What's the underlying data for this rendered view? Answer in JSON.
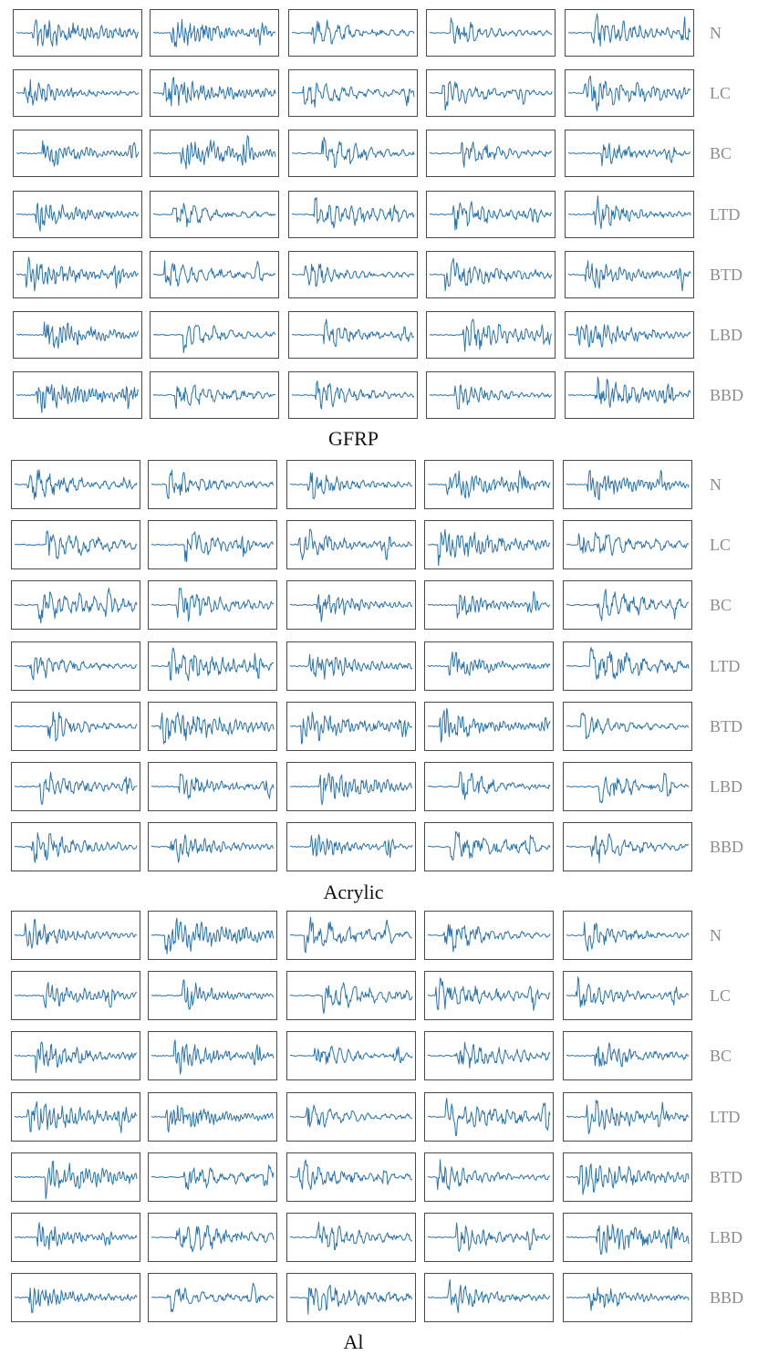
{
  "figure": {
    "line_color": "#2a73ae",
    "frame_color": "#4a4a4a",
    "label_color": "#8c8c8c",
    "columns_per_row": 5
  },
  "chart_data": [
    {
      "type": "line",
      "title": "GFRP",
      "row_labels": [
        "N",
        "LC",
        "BC",
        "LTD",
        "BTD",
        "LBD",
        "BBD"
      ],
      "columns": 5,
      "axes_visible": false,
      "grid": false
    },
    {
      "type": "line",
      "title": "Acrylic",
      "row_labels": [
        "N",
        "LC",
        "BC",
        "LTD",
        "BTD",
        "LBD",
        "BBD"
      ],
      "columns": 5,
      "axes_visible": false,
      "grid": false
    },
    {
      "type": "line",
      "title": "Al",
      "row_labels": [
        "N",
        "LC",
        "BC",
        "LTD",
        "BTD",
        "LBD",
        "BBD"
      ],
      "columns": 5,
      "axes_visible": false,
      "grid": false
    }
  ]
}
